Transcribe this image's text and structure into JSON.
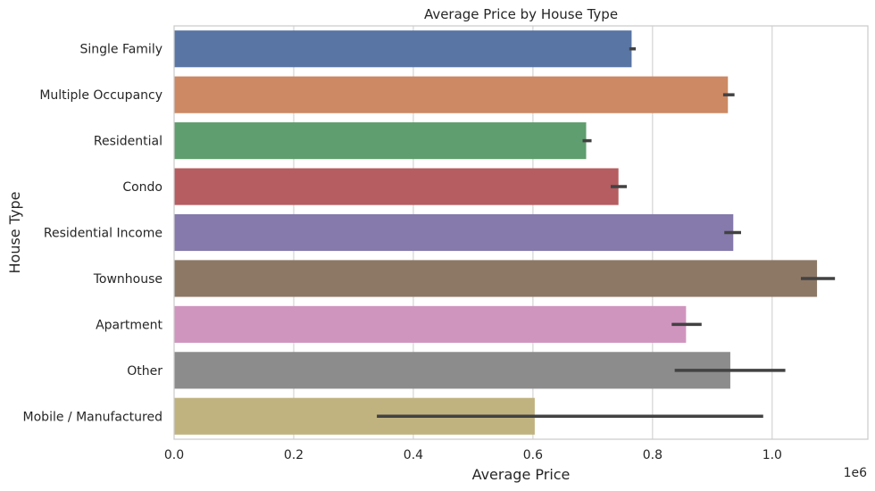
{
  "chart_data": {
    "type": "bar",
    "orientation": "horizontal",
    "title": "Average Price by House Type",
    "xlabel": "Average Price",
    "ylabel": "House Type",
    "x_offset_label": "1e6",
    "xlim": [
      0,
      1.16
    ],
    "xticks": [
      0.0,
      0.2,
      0.4,
      0.6,
      0.8,
      1.0
    ],
    "xtick_labels": [
      "0.0",
      "0.2",
      "0.4",
      "0.6",
      "0.8",
      "1.0"
    ],
    "grid": true,
    "categories": [
      "Single Family",
      "Multiple Occupancy",
      "Residential",
      "Condo",
      "Residential Income",
      "Townhouse",
      "Apartment",
      "Other",
      "Mobile / Manufactured"
    ],
    "values": [
      0.765,
      0.926,
      0.689,
      0.743,
      0.935,
      1.075,
      0.856,
      0.93,
      0.603
    ],
    "error_low": [
      0.761,
      0.918,
      0.683,
      0.73,
      0.92,
      1.048,
      0.832,
      0.837,
      0.339
    ],
    "error_high": [
      0.772,
      0.937,
      0.698,
      0.757,
      0.948,
      1.105,
      0.882,
      1.022,
      0.985
    ],
    "colors": [
      "#5875a4",
      "#cc8963",
      "#5f9e6e",
      "#b55d60",
      "#857aab",
      "#8d7866",
      "#d095bf",
      "#8c8c8c",
      "#c1b37f"
    ],
    "error_color": "#424242"
  }
}
